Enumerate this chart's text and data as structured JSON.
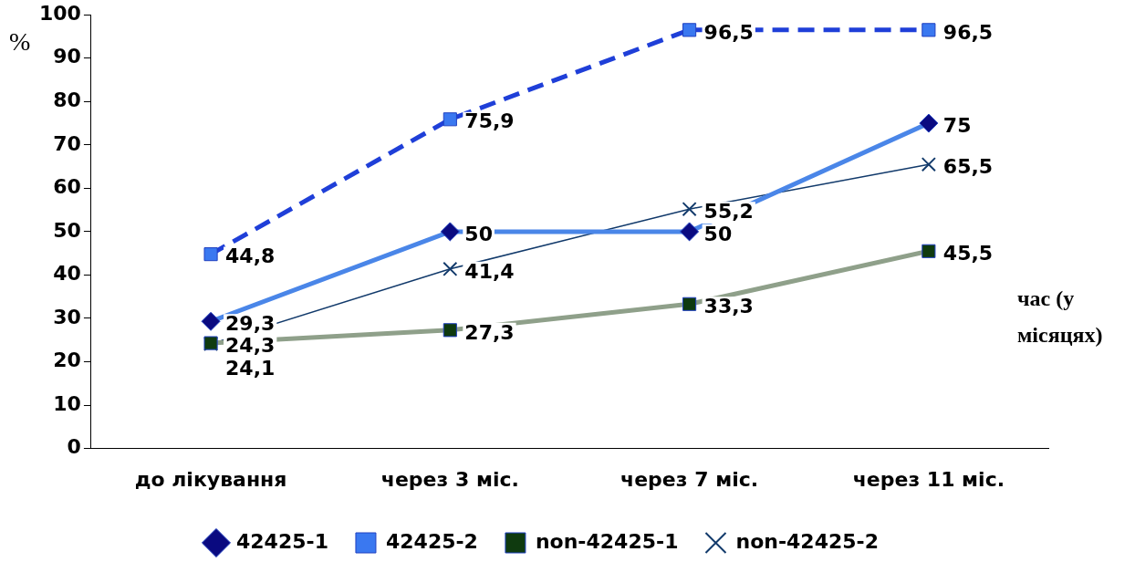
{
  "chart_data": {
    "type": "line",
    "ylabel": "%",
    "xlabel": "час (у місяцях)",
    "categories": [
      "до лікування",
      "через 3 міс.",
      "через 7 міс.",
      "через 11 міс."
    ],
    "series": [
      {
        "name": "42425-1",
        "color": "#4a86e8",
        "marker": "diamond",
        "line_style": "solid",
        "values": [
          29.3,
          50,
          50,
          75
        ],
        "value_labels": [
          "29,3",
          "50",
          "50",
          "75"
        ]
      },
      {
        "name": "42425-2",
        "color": "#1f3fd8",
        "marker": "square",
        "line_style": "dashed",
        "values": [
          44.8,
          75.9,
          96.5,
          96.5
        ],
        "value_labels": [
          "44,8",
          "75,9",
          "96,5",
          "96,5"
        ]
      },
      {
        "name": "non-42425-1",
        "color": "#8fa08a",
        "marker": "square",
        "line_style": "solid",
        "values": [
          24.3,
          27.3,
          33.3,
          45.5
        ],
        "value_labels": [
          "24,3",
          "27,3",
          "33,3",
          "45,5"
        ]
      },
      {
        "name": "non-42425-2",
        "color": "#123a6b",
        "marker": "cross",
        "line_style": "solid",
        "values": [
          24.1,
          41.4,
          55.2,
          65.5
        ],
        "value_labels": [
          "24,1",
          "41,4",
          "55,2",
          "65,5"
        ]
      }
    ],
    "ylim": [
      0,
      100
    ],
    "yticks": [
      0,
      10,
      20,
      30,
      40,
      50,
      60,
      70,
      80,
      90,
      100
    ],
    "grid": false,
    "legend": "bottom"
  }
}
